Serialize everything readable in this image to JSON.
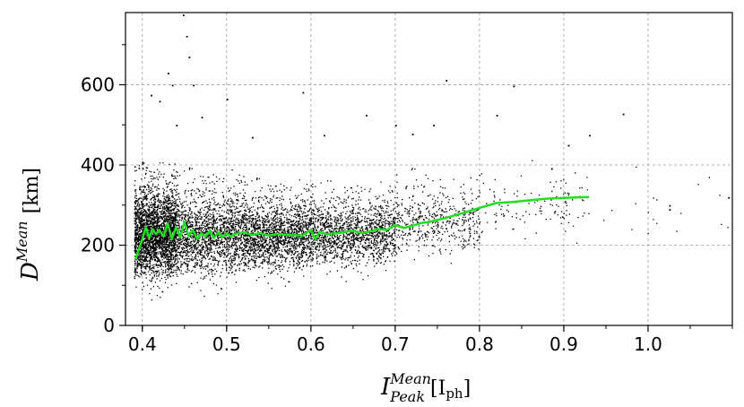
{
  "chart_data": {
    "type": "scatter",
    "title": "",
    "xlabel": {
      "base": "I",
      "sup": "Mean",
      "sub": "Peak",
      "unit_open": "[I",
      "unit_sub": "ph",
      "unit_close": "]"
    },
    "ylabel": {
      "base": "D",
      "sup": "Mean",
      "unit": "[km]"
    },
    "xlim": [
      0.38,
      1.1
    ],
    "ylim": [
      0,
      780
    ],
    "xticks": [
      0.4,
      0.5,
      0.6,
      0.7,
      0.8,
      0.9,
      1.0
    ],
    "xtick_labels": [
      "0.4",
      "0.5",
      "0.6",
      "0.7",
      "0.8",
      "0.9",
      "1.0"
    ],
    "yticks": [
      0,
      200,
      400,
      600
    ],
    "ytick_labels": [
      "0",
      "200",
      "400",
      "600"
    ],
    "grid": true,
    "scatter_color": "#000000",
    "trend_color": "#22dd22",
    "trend_line": {
      "x": [
        0.392,
        0.396,
        0.4,
        0.404,
        0.408,
        0.412,
        0.416,
        0.42,
        0.425,
        0.43,
        0.435,
        0.44,
        0.445,
        0.45,
        0.455,
        0.46,
        0.465,
        0.47,
        0.475,
        0.48,
        0.485,
        0.49,
        0.495,
        0.5,
        0.505,
        0.51,
        0.52,
        0.53,
        0.54,
        0.55,
        0.56,
        0.57,
        0.58,
        0.59,
        0.6,
        0.605,
        0.61,
        0.62,
        0.63,
        0.64,
        0.65,
        0.66,
        0.67,
        0.68,
        0.69,
        0.7,
        0.71,
        0.72,
        0.73,
        0.74,
        0.76,
        0.78,
        0.8,
        0.82,
        0.84,
        0.86,
        0.88,
        0.9,
        0.93
      ],
      "y": [
        165,
        190,
        215,
        245,
        218,
        240,
        228,
        238,
        222,
        255,
        215,
        245,
        220,
        258,
        222,
        238,
        215,
        230,
        222,
        236,
        218,
        232,
        220,
        230,
        222,
        228,
        232,
        226,
        230,
        224,
        228,
        226,
        225,
        224,
        238,
        215,
        232,
        227,
        230,
        233,
        236,
        230,
        234,
        240,
        238,
        250,
        243,
        248,
        255,
        258,
        268,
        280,
        293,
        305,
        308,
        312,
        316,
        318,
        320
      ]
    },
    "scatter_clusters": [
      {
        "x_from": 0.39,
        "x_to": 0.44,
        "y_center": 230,
        "y_spread": 75,
        "count": 4200
      },
      {
        "x_from": 0.44,
        "x_to": 0.52,
        "y_center": 228,
        "y_spread": 70,
        "count": 4200
      },
      {
        "x_from": 0.52,
        "x_to": 0.6,
        "y_center": 226,
        "y_spread": 60,
        "count": 2400
      },
      {
        "x_from": 0.6,
        "x_to": 0.7,
        "y_center": 232,
        "y_spread": 55,
        "count": 1500
      },
      {
        "x_from": 0.7,
        "x_to": 0.8,
        "y_center": 262,
        "y_spread": 55,
        "count": 500
      },
      {
        "x_from": 0.8,
        "x_to": 0.93,
        "y_center": 300,
        "y_spread": 55,
        "count": 120
      },
      {
        "x_from": 0.93,
        "x_to": 1.1,
        "y_center": 300,
        "y_spread": 60,
        "count": 18
      }
    ],
    "scatter_outliers": {
      "x": [
        0.448,
        0.452,
        0.43,
        0.46,
        0.41,
        0.42,
        0.47,
        0.5,
        0.455,
        0.44,
        0.76,
        0.84,
        0.72,
        0.97,
        0.59,
        0.615,
        0.885,
        0.93,
        0.905,
        1.025,
        1.025,
        1.095,
        0.82,
        0.745,
        0.665,
        0.7,
        0.435,
        0.53
      ],
      "y": [
        775,
        722,
        630,
        600,
        575,
        560,
        520,
        565,
        670,
        500,
        612,
        598,
        478,
        528,
        582,
        475,
        392,
        475,
        450,
        300,
        290,
        320,
        525,
        500,
        525,
        500,
        600,
        470
      ]
    }
  }
}
